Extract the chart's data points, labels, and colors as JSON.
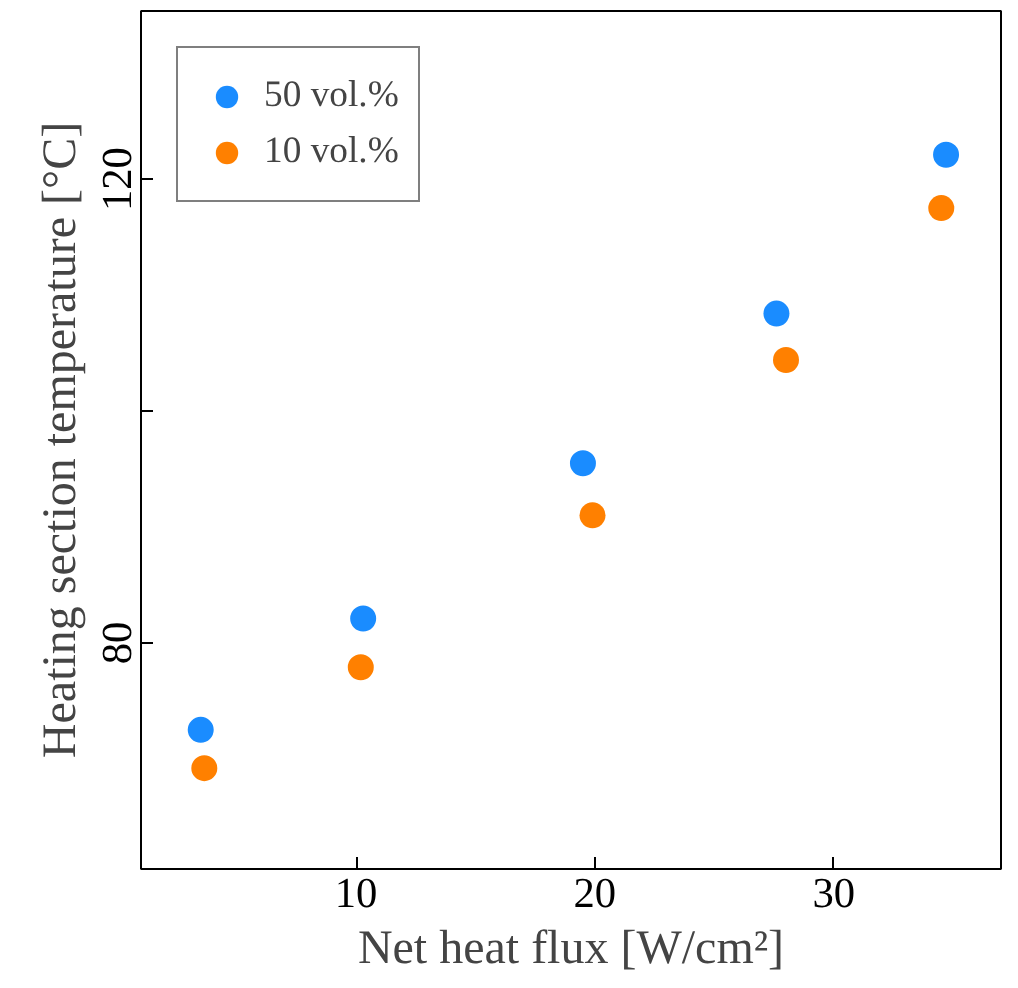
{
  "chart_data": {
    "type": "scatter",
    "xlabel": "Net heat flux [W/cm²]",
    "ylabel": "Heating section temperature [°C]",
    "xlim": [
      1,
      37
    ],
    "ylim": [
      60.5,
      134.5
    ],
    "xticks": [
      10,
      20,
      30
    ],
    "yticks": [
      80,
      {
        "value": 100,
        "label": null
      },
      120
    ],
    "grid": false,
    "legend": "top left",
    "marker": "circle",
    "series": [
      {
        "name": "50 vol.%",
        "color": "#1a8cff",
        "x": [
          3.5,
          10.3,
          19.5,
          27.6,
          34.7
        ],
        "values": [
          72.5,
          82.1,
          95.5,
          108.4,
          122.1
        ]
      },
      {
        "name": "10 vol.%",
        "color": "#ff8000",
        "x": [
          3.65,
          10.2,
          19.9,
          28.0,
          34.5
        ],
        "values": [
          69.2,
          77.9,
          91.0,
          104.4,
          117.5
        ]
      }
    ]
  }
}
